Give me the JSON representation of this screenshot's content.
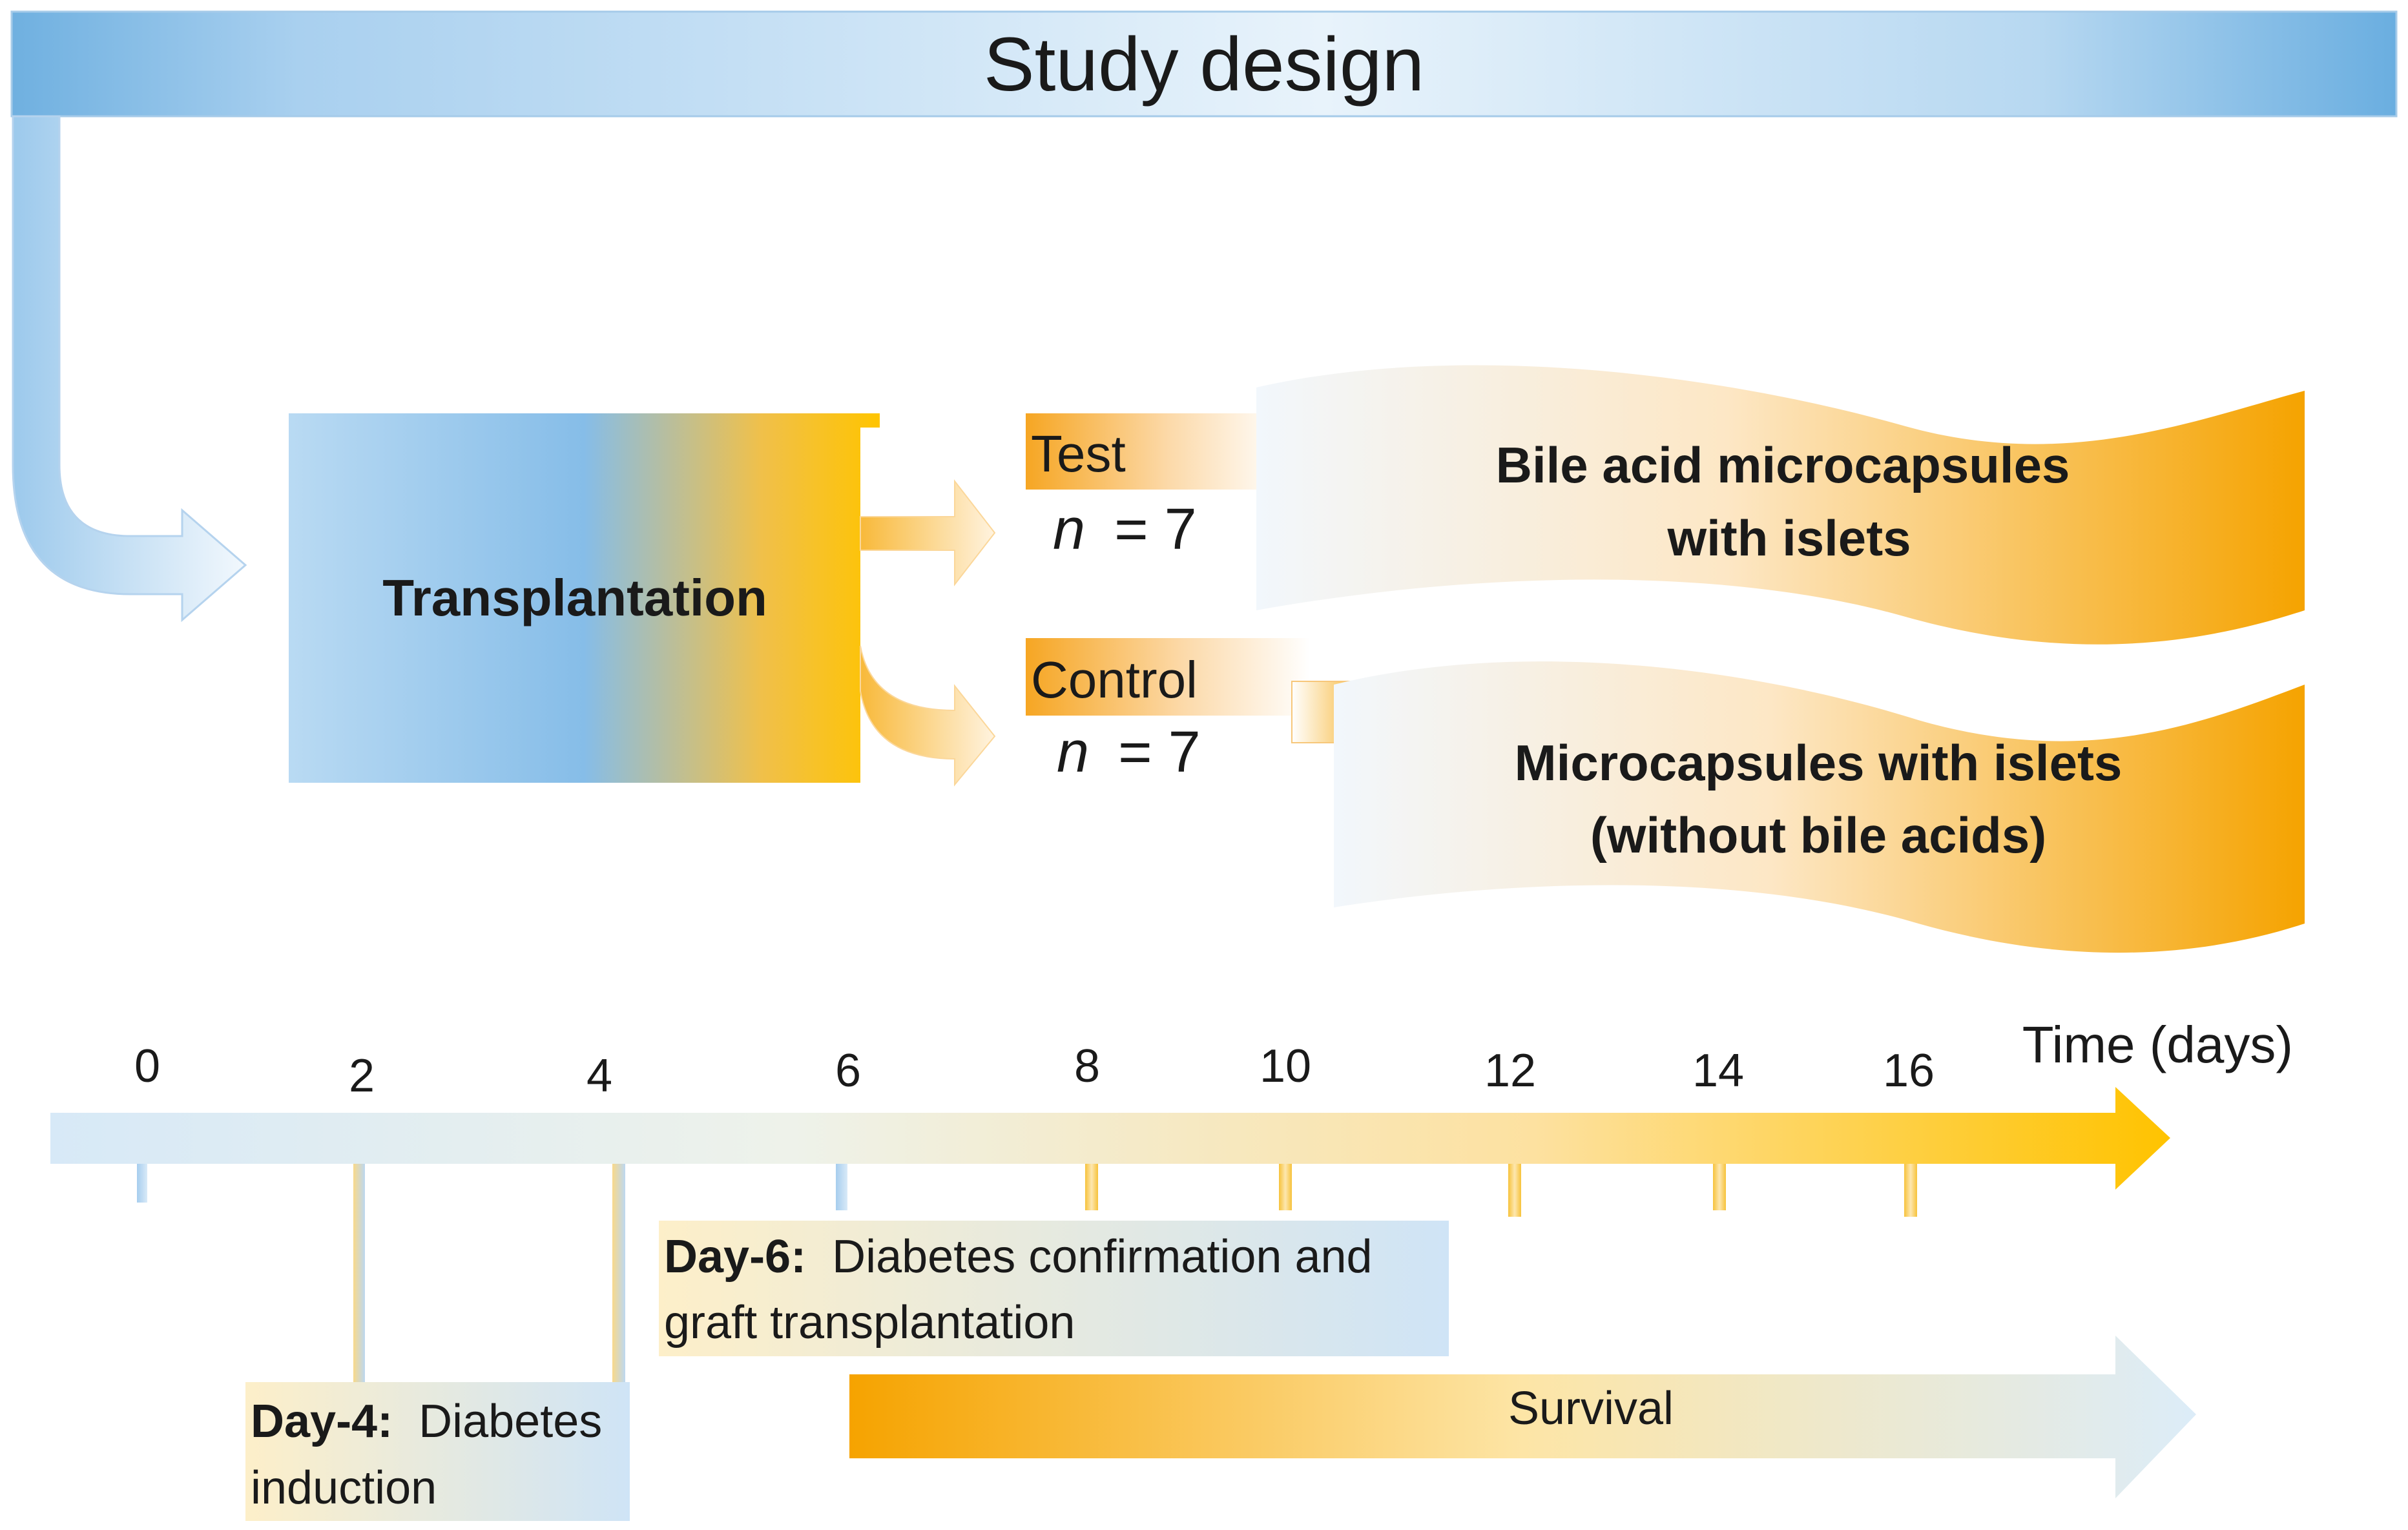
{
  "title": "Study design",
  "transplantation_label": "Transplantation",
  "groups": [
    {
      "label": "Test",
      "n_prefix": "n",
      "n_value": "= 7",
      "description_line1": "Bile acid microcapsules",
      "description_line2": "with islets"
    },
    {
      "label": "Control",
      "n_prefix": "n",
      "n_value": "= 7",
      "description_line1": "Microcapsules with islets",
      "description_line2": "(without bile acids)"
    }
  ],
  "timeline": {
    "axis_label": "Time (days)",
    "ticks": [
      "0",
      "2",
      "4",
      "6",
      "8",
      "10",
      "12",
      "14",
      "16"
    ],
    "survival_label": "Survival"
  },
  "events": [
    {
      "day_label": "Day-6:",
      "text_line1": "Diabetes confirmation and",
      "text_line2": "graft transplantation"
    },
    {
      "day_label": "Day-4:",
      "text_line1": "Diabetes",
      "text_line2": "induction"
    }
  ],
  "colors": {
    "blue": "#7fb8e3",
    "light_blue": "#d7e9f7",
    "orange": "#f5a800",
    "yellow": "#ffc81e"
  }
}
